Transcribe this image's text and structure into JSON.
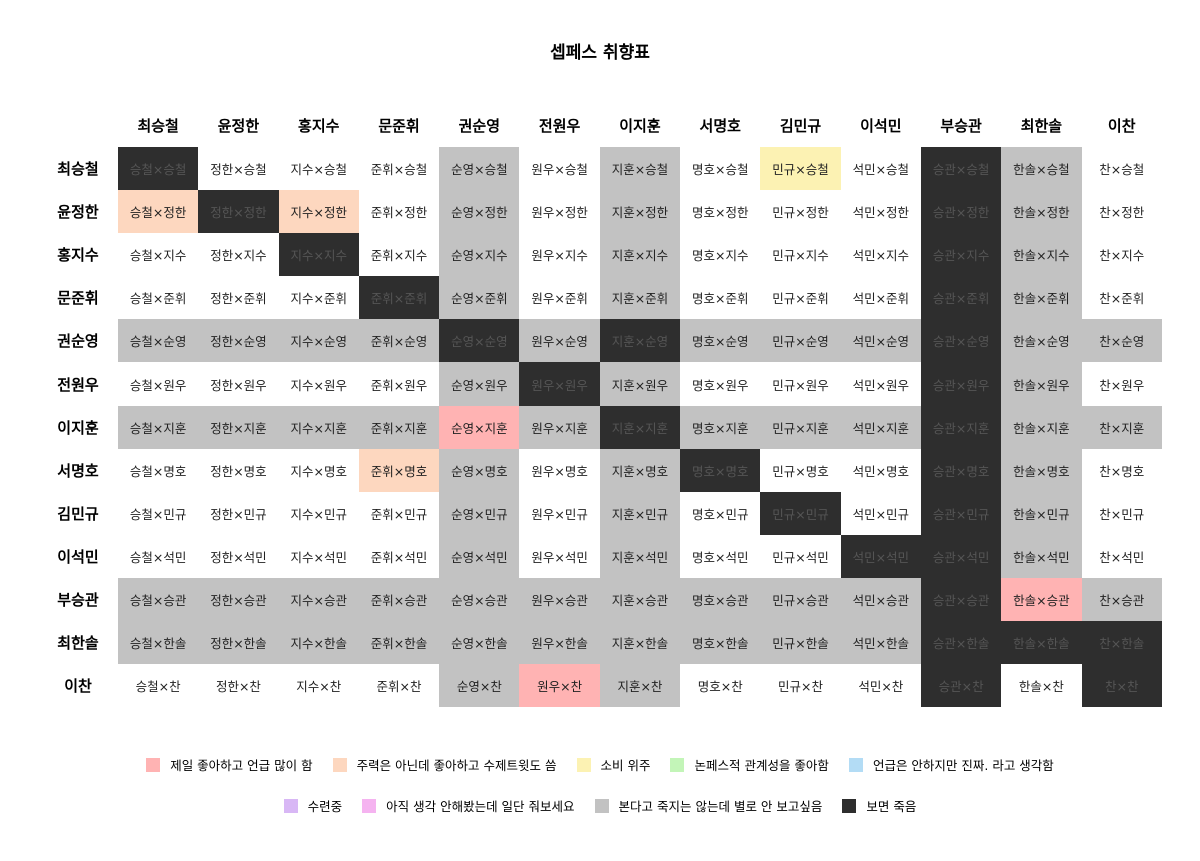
{
  "title": "셉페스 취향표",
  "members": [
    "최승철",
    "윤정한",
    "홍지수",
    "문준휘",
    "권순영",
    "전원우",
    "이지훈",
    "서명호",
    "김민규",
    "이석민",
    "부승관",
    "최한솔",
    "이찬"
  ],
  "short_names": [
    "승철",
    "정한",
    "지수",
    "준휘",
    "순영",
    "원우",
    "지훈",
    "명호",
    "민규",
    "석민",
    "승관",
    "한솔",
    "찬"
  ],
  "separator": "×",
  "cell_colors": [
    [
      9,
      0,
      0,
      0,
      8,
      0,
      8,
      0,
      3,
      0,
      9,
      8,
      0
    ],
    [
      2,
      9,
      2,
      0,
      8,
      0,
      8,
      0,
      0,
      0,
      9,
      8,
      0
    ],
    [
      0,
      0,
      9,
      0,
      8,
      0,
      8,
      0,
      0,
      0,
      9,
      8,
      0
    ],
    [
      0,
      0,
      0,
      9,
      8,
      0,
      8,
      0,
      0,
      0,
      9,
      8,
      0
    ],
    [
      8,
      8,
      8,
      8,
      9,
      8,
      9,
      8,
      8,
      8,
      9,
      8,
      8
    ],
    [
      0,
      0,
      0,
      0,
      8,
      9,
      8,
      0,
      0,
      0,
      9,
      8,
      0
    ],
    [
      8,
      8,
      8,
      8,
      1,
      8,
      9,
      8,
      8,
      8,
      9,
      8,
      8
    ],
    [
      0,
      0,
      0,
      2,
      8,
      0,
      8,
      9,
      0,
      0,
      9,
      8,
      0
    ],
    [
      0,
      0,
      0,
      0,
      8,
      0,
      8,
      0,
      9,
      0,
      9,
      8,
      0
    ],
    [
      0,
      0,
      0,
      0,
      8,
      0,
      8,
      0,
      0,
      9,
      9,
      8,
      0
    ],
    [
      8,
      8,
      8,
      8,
      8,
      8,
      8,
      8,
      8,
      8,
      9,
      1,
      8
    ],
    [
      8,
      8,
      8,
      8,
      8,
      8,
      8,
      8,
      8,
      8,
      9,
      9,
      9
    ],
    [
      0,
      0,
      0,
      0,
      8,
      1,
      8,
      0,
      0,
      0,
      9,
      0,
      9
    ]
  ],
  "legend": [
    {
      "color": "#ffb3b3",
      "label": "제일 좋아하고 언급 많이 함"
    },
    {
      "color": "#fdd7bf",
      "label": "주력은 아닌데 좋아하고 수제트윗도 씀"
    },
    {
      "color": "#fcf2b3",
      "label": "소비 위주"
    },
    {
      "color": "#c3f5b8",
      "label": "논페스적 관계성을 좋아함"
    },
    {
      "color": "#b3dcf5",
      "label": "언급은 안하지만 진짜. 라고 생각함"
    },
    {
      "color": "#d8b7f5",
      "label": "수련중"
    },
    {
      "color": "#f5b3f0",
      "label": "아직 생각 안해봤는데 일단 줘보세요"
    },
    {
      "color": "#c2c2c2",
      "label": "본다고 죽지는 않는데 별로 안 보고싶음"
    },
    {
      "color": "#2e2e2e",
      "label": "보면 죽음"
    }
  ]
}
